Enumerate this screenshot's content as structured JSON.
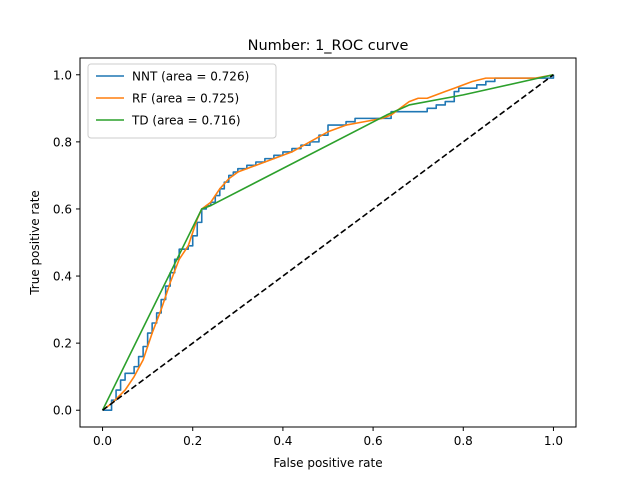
{
  "chart_data": {
    "type": "line",
    "title": "Number: 1_ROC curve",
    "xlabel": "False positive rate",
    "ylabel": "True positive rate",
    "xlim": [
      -0.05,
      1.05
    ],
    "ylim": [
      -0.05,
      1.05
    ],
    "xticks": [
      "0.0",
      "0.2",
      "0.4",
      "0.6",
      "0.8",
      "1.0"
    ],
    "yticks": [
      "0.0",
      "0.2",
      "0.4",
      "0.6",
      "0.8",
      "1.0"
    ],
    "grid": false,
    "legend_position": "upper-left",
    "series": [
      {
        "name": "NNT (area = 0.726)",
        "color": "#1f77b4",
        "style": "step",
        "x": [
          0.0,
          0.02,
          0.03,
          0.04,
          0.05,
          0.07,
          0.08,
          0.09,
          0.1,
          0.11,
          0.12,
          0.13,
          0.14,
          0.15,
          0.16,
          0.17,
          0.18,
          0.19,
          0.2,
          0.21,
          0.22,
          0.23,
          0.24,
          0.25,
          0.26,
          0.27,
          0.28,
          0.29,
          0.3,
          0.32,
          0.34,
          0.36,
          0.38,
          0.4,
          0.42,
          0.44,
          0.46,
          0.48,
          0.5,
          0.52,
          0.54,
          0.56,
          0.58,
          0.6,
          0.62,
          0.64,
          0.66,
          0.68,
          0.7,
          0.72,
          0.74,
          0.76,
          0.78,
          0.79,
          0.81,
          0.83,
          0.85,
          0.87,
          0.9,
          0.95,
          1.0
        ],
        "y": [
          0.0,
          0.03,
          0.06,
          0.09,
          0.11,
          0.13,
          0.16,
          0.19,
          0.23,
          0.26,
          0.29,
          0.33,
          0.37,
          0.41,
          0.45,
          0.48,
          0.48,
          0.49,
          0.52,
          0.56,
          0.6,
          0.61,
          0.62,
          0.64,
          0.66,
          0.68,
          0.7,
          0.71,
          0.72,
          0.73,
          0.74,
          0.75,
          0.76,
          0.77,
          0.78,
          0.79,
          0.8,
          0.82,
          0.85,
          0.85,
          0.86,
          0.87,
          0.87,
          0.87,
          0.87,
          0.89,
          0.89,
          0.89,
          0.89,
          0.9,
          0.91,
          0.92,
          0.95,
          0.96,
          0.96,
          0.97,
          0.98,
          0.99,
          0.99,
          0.99,
          1.0
        ]
      },
      {
        "name": "RF (area = 0.725)",
        "color": "#ff7f0e",
        "style": "line",
        "x": [
          0.0,
          0.02,
          0.05,
          0.07,
          0.09,
          0.11,
          0.13,
          0.15,
          0.17,
          0.19,
          0.2,
          0.21,
          0.22,
          0.24,
          0.26,
          0.28,
          0.3,
          0.34,
          0.38,
          0.42,
          0.46,
          0.5,
          0.54,
          0.58,
          0.62,
          0.64,
          0.66,
          0.68,
          0.7,
          0.72,
          0.74,
          0.76,
          0.78,
          0.8,
          0.82,
          0.85,
          0.88,
          0.92,
          0.96,
          1.0
        ],
        "y": [
          0.0,
          0.02,
          0.06,
          0.1,
          0.15,
          0.23,
          0.3,
          0.38,
          0.45,
          0.49,
          0.53,
          0.57,
          0.6,
          0.62,
          0.66,
          0.69,
          0.71,
          0.73,
          0.75,
          0.77,
          0.8,
          0.83,
          0.85,
          0.86,
          0.87,
          0.88,
          0.9,
          0.92,
          0.93,
          0.93,
          0.94,
          0.95,
          0.96,
          0.97,
          0.98,
          0.99,
          0.99,
          0.99,
          0.99,
          1.0
        ]
      },
      {
        "name": "TD (area = 0.716)",
        "color": "#2ca02c",
        "style": "line",
        "x": [
          0.0,
          0.22,
          0.24,
          0.63,
          0.68,
          0.8,
          1.0
        ],
        "y": [
          0.0,
          0.6,
          0.61,
          0.88,
          0.91,
          0.94,
          1.0
        ]
      },
      {
        "name": "",
        "color": "#000000",
        "style": "dashed",
        "x": [
          0.0,
          1.0
        ],
        "y": [
          0.0,
          1.0
        ]
      }
    ]
  }
}
